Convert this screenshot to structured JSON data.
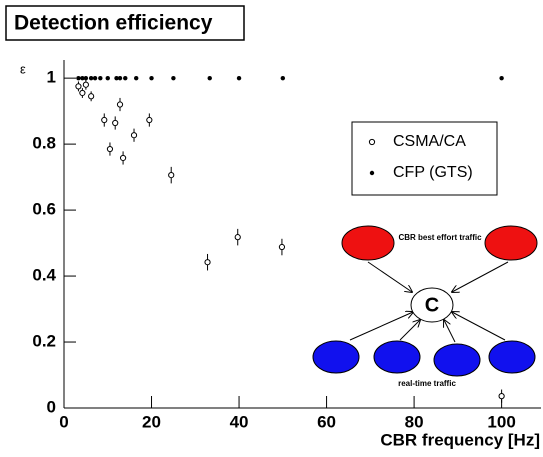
{
  "chart_data": {
    "type": "scatter",
    "title": "Detection efficiency",
    "x_label": "CBR frequency [Hz]",
    "y_label": "ε",
    "xlim": [
      0,
      109
    ],
    "ylim": [
      0,
      1.055
    ],
    "xticks": [
      0,
      20,
      40,
      60,
      80,
      100
    ],
    "yticks": [
      0,
      0.2,
      0.4,
      0.6,
      0.8,
      1
    ],
    "legend_position": "upper right",
    "series": [
      {
        "name": "CSMA/CA",
        "marker": "open-circle",
        "color": "#000000",
        "x": [
          3.3,
          4.2,
          5.0,
          6.2,
          9.2,
          10.5,
          11.7,
          12.8,
          13.5,
          16.0,
          19.5,
          24.5,
          32.8,
          39.7,
          49.8,
          100
        ],
        "values": [
          0.975,
          0.955,
          0.98,
          0.945,
          0.873,
          0.785,
          0.864,
          0.92,
          0.758,
          0.827,
          0.873,
          0.706,
          0.442,
          0.518,
          0.488,
          0.036
        ],
        "errors": [
          0.015,
          0.015,
          0.015,
          0.015,
          0.02,
          0.02,
          0.02,
          0.02,
          0.02,
          0.02,
          0.02,
          0.025,
          0.025,
          0.025,
          0.025,
          0.02
        ]
      },
      {
        "name": "CFP (GTS)",
        "marker": "dot",
        "color": "#000000",
        "x": [
          3.3,
          4.2,
          5.0,
          6.2,
          7.1,
          8.3,
          10,
          12,
          12.8,
          14,
          16.5,
          20,
          25,
          33.3,
          40,
          50,
          100
        ],
        "values": [
          1,
          1,
          1,
          1,
          1,
          1,
          1,
          1,
          1,
          1,
          1,
          1,
          1,
          1,
          1,
          1,
          1
        ]
      }
    ],
    "inset": {
      "top_label": "CBR best effort traffic",
      "center_label": "C",
      "bottom_label": "real-time traffic"
    }
  }
}
